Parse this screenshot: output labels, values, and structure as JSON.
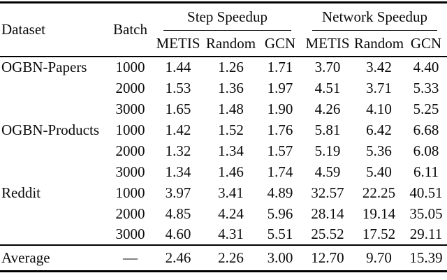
{
  "table": {
    "headers": {
      "dataset": "Dataset",
      "batch": "Batch",
      "sub": [
        "METIS",
        "Random",
        "GCN",
        "METIS",
        "Random",
        "GCN"
      ]
    },
    "groups": [
      "Step Speedup",
      "Network Speedup"
    ],
    "rows": [
      {
        "dataset": "OGBN-Papers",
        "batch": "1000",
        "values": [
          "1.44",
          "1.26",
          "1.71",
          "3.70",
          "3.42",
          "4.40"
        ]
      },
      {
        "dataset": "",
        "batch": "2000",
        "values": [
          "1.53",
          "1.36",
          "1.97",
          "4.51",
          "3.71",
          "5.33"
        ]
      },
      {
        "dataset": "",
        "batch": "3000",
        "values": [
          "1.65",
          "1.48",
          "1.90",
          "4.26",
          "4.10",
          "5.25"
        ]
      },
      {
        "dataset": "OGBN-Products",
        "batch": "1000",
        "values": [
          "1.42",
          "1.52",
          "1.76",
          "5.81",
          "6.42",
          "6.68"
        ]
      },
      {
        "dataset": "",
        "batch": "2000",
        "values": [
          "1.32",
          "1.34",
          "1.57",
          "5.19",
          "5.36",
          "6.08"
        ]
      },
      {
        "dataset": "",
        "batch": "3000",
        "values": [
          "1.34",
          "1.46",
          "1.74",
          "4.59",
          "5.40",
          "6.11"
        ]
      },
      {
        "dataset": "Reddit",
        "batch": "1000",
        "values": [
          "3.97",
          "3.41",
          "4.89",
          "32.57",
          "22.25",
          "40.51"
        ]
      },
      {
        "dataset": "",
        "batch": "2000",
        "values": [
          "4.85",
          "4.24",
          "5.96",
          "28.14",
          "19.14",
          "35.05"
        ]
      },
      {
        "dataset": "",
        "batch": "3000",
        "values": [
          "4.60",
          "4.31",
          "5.51",
          "25.52",
          "17.52",
          "29.11"
        ]
      }
    ],
    "average_row": {
      "label": "Average",
      "batch": "—",
      "values": [
        "2.46",
        "2.26",
        "3.00",
        "12.70",
        "9.70",
        "15.39"
      ]
    },
    "colors": {
      "text": "#0a0a0a",
      "rule": "#000000",
      "background": "#ffffff"
    }
  }
}
